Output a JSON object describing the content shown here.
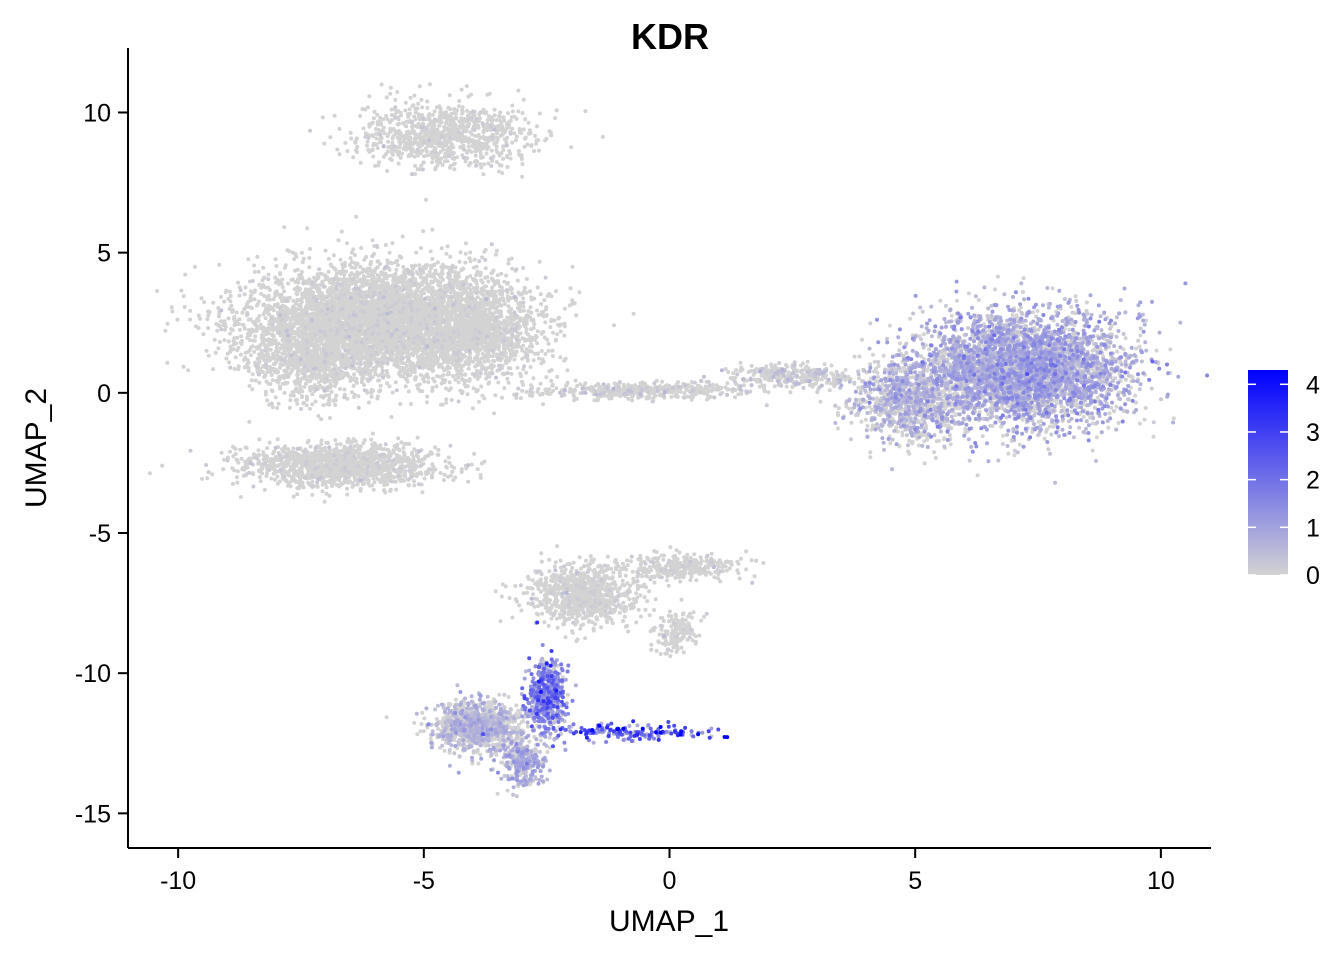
{
  "chart_data": {
    "type": "scatter",
    "title": "KDR",
    "xlabel": "UMAP_1",
    "ylabel": "UMAP_2",
    "xlim": [
      -11,
      11
    ],
    "ylim": [
      -16.2,
      12.3
    ],
    "x_ticks": [
      -10,
      -5,
      0,
      5,
      10
    ],
    "y_ticks": [
      10,
      5,
      0,
      -5,
      -10,
      -15
    ],
    "x_tick_labels": [
      "-10",
      "-5",
      "0",
      "5",
      "10"
    ],
    "y_tick_labels": [
      "10",
      "5",
      "0",
      "-5",
      "-10",
      "-15"
    ],
    "grid": false,
    "legend": {
      "placement": "right",
      "type": "colorbar",
      "range": [
        0,
        4.3
      ],
      "ticks": [
        0,
        1,
        2,
        3,
        4
      ],
      "tick_labels": [
        "0",
        "1",
        "2",
        "3",
        "4"
      ],
      "colors": {
        "low": "#d3d3d3",
        "high": "#0000ff"
      }
    },
    "clusters": [
      {
        "cx": -4.5,
        "cy": 9.2,
        "sx": 1.2,
        "sy": 0.8,
        "count": 900,
        "expr": 0.03
      },
      {
        "cx": -5.8,
        "cy": 2.6,
        "sx": 1.8,
        "sy": 1.3,
        "count": 4800,
        "expr": 0.04
      },
      {
        "cx": -7.3,
        "cy": 1.4,
        "sx": 0.9,
        "sy": 1.2,
        "count": 900,
        "expr": 0.03
      },
      {
        "cx": -4.0,
        "cy": 2.0,
        "sx": 1.0,
        "sy": 1.1,
        "count": 900,
        "expr": 0.03
      },
      {
        "cx": -6.7,
        "cy": -2.6,
        "sx": 1.3,
        "sy": 0.5,
        "count": 1400,
        "expr": 0.03
      },
      {
        "cx": -0.5,
        "cy": 0.1,
        "sx": 1.6,
        "sy": 0.2,
        "count": 400,
        "expr": 0.15
      },
      {
        "cx": 2.5,
        "cy": 0.6,
        "sx": 0.8,
        "sy": 0.3,
        "count": 300,
        "expr": 0.3
      },
      {
        "cx": 7.2,
        "cy": 0.8,
        "sx": 1.4,
        "sy": 1.3,
        "count": 4200,
        "expr": 0.75
      },
      {
        "cx": 4.9,
        "cy": -0.3,
        "sx": 0.8,
        "sy": 1.0,
        "count": 900,
        "expr": 0.6
      },
      {
        "cx": -1.8,
        "cy": -7.2,
        "sx": 0.7,
        "sy": 0.7,
        "count": 900,
        "expr": 0.05
      },
      {
        "cx": 0.2,
        "cy": -6.2,
        "sx": 0.8,
        "sy": 0.3,
        "count": 300,
        "expr": 0.05
      },
      {
        "cx": 0.1,
        "cy": -8.5,
        "sx": 0.3,
        "sy": 0.5,
        "count": 150,
        "expr": 0.05
      },
      {
        "cx": -3.9,
        "cy": -11.9,
        "sx": 0.6,
        "sy": 0.6,
        "count": 1100,
        "expr": 0.5
      },
      {
        "cx": -3.0,
        "cy": -13.2,
        "sx": 0.3,
        "sy": 0.6,
        "count": 300,
        "expr": 0.7
      },
      {
        "cx": -2.5,
        "cy": -10.8,
        "sx": 0.25,
        "sy": 0.8,
        "count": 500,
        "expr": 1.4
      },
      {
        "cx": -0.8,
        "cy": -12.1,
        "sx": 1.2,
        "sy": 0.2,
        "count": 160,
        "expr": 2.2
      }
    ]
  },
  "colors": {
    "background": "#ffffff",
    "low": "#d3d3d3",
    "high": "#0000ff",
    "axis": "#000000"
  }
}
